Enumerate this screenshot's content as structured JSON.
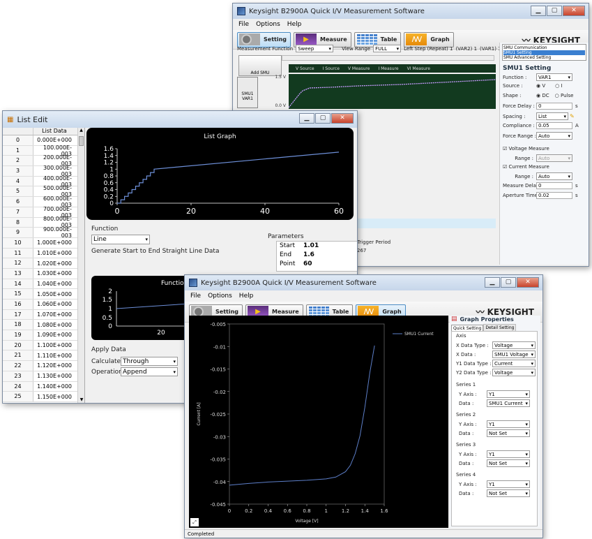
{
  "w1": {
    "title": "Keysight B2900A Quick I/V Measurement Software",
    "menu": [
      "File",
      "Options",
      "Help"
    ],
    "toolbar": {
      "setting": "Setting",
      "measure": "Measure",
      "table": "Table",
      "graph": "Graph"
    },
    "logo": "KEYSIGHT",
    "measfn_label": "Measurement Function",
    "measfn": "Sweep",
    "viewrange_label": "View Range",
    "viewrange": "FULL",
    "leftstep": "Left Step (Repeat) 1",
    "var2": "(VAR2) 1",
    "var1": "(VAR1) 1",
    "add_smu": "Add SMU",
    "smu_card": "SMU1\nVAR1",
    "legend": [
      "V Source",
      "I Source",
      "V Measure",
      "I Measure",
      "VI Measure"
    ],
    "y_top": "1.5 V",
    "y_bot": "0.0 V",
    "tree": [
      "SMU Communication",
      "SMU1 Setting",
      "SMU Advanced Setting"
    ],
    "panel_title": "SMU1 Setting",
    "function_label": "Function :",
    "function_val": "VAR1",
    "source_label": "Source :",
    "source_v": "V",
    "source_i": "I",
    "shape_label": "Shape :",
    "shape_dc": "DC",
    "shape_pulse": "Pulse",
    "forcedelay_label": "Force Delay :",
    "forcedelay": "0",
    "unit_s": "s",
    "spacing_label": "Spacing :",
    "spacing": "List",
    "compliance_label": "Compliance :",
    "compliance": "0.05",
    "unit_a": "A",
    "forcerange_label": "Force Range :",
    "forcerange": "Auto",
    "vmeas": "Voltage Measure",
    "range_label": "Range :",
    "vrange": "Auto",
    "imeas": "Current Measure",
    "irange": "Auto",
    "measdelay_label": "Measure Delay :",
    "measdelay": "0",
    "aperture_label": "Aperture Time :",
    "aperture": "0.02",
    "behind": [
      "Trigger Period",
      "267"
    ]
  },
  "w2": {
    "title": "List Edit",
    "col_header": "List Data",
    "rows": [
      [
        "0",
        "0.000E+000"
      ],
      [
        "1",
        "100.000E-003"
      ],
      [
        "2",
        "200.000E-003"
      ],
      [
        "3",
        "300.000E-003"
      ],
      [
        "4",
        "400.000E-003"
      ],
      [
        "5",
        "500.000E-003"
      ],
      [
        "6",
        "600.000E-003"
      ],
      [
        "7",
        "700.000E-003"
      ],
      [
        "8",
        "800.000E-003"
      ],
      [
        "9",
        "900.000E-003"
      ],
      [
        "10",
        "1.000E+000"
      ],
      [
        "11",
        "1.010E+000"
      ],
      [
        "12",
        "1.020E+000"
      ],
      [
        "13",
        "1.030E+000"
      ],
      [
        "14",
        "1.040E+000"
      ],
      [
        "15",
        "1.050E+000"
      ],
      [
        "16",
        "1.060E+000"
      ],
      [
        "17",
        "1.070E+000"
      ],
      [
        "18",
        "1.080E+000"
      ],
      [
        "19",
        "1.090E+000"
      ],
      [
        "20",
        "1.100E+000"
      ],
      [
        "21",
        "1.110E+000"
      ],
      [
        "22",
        "1.120E+000"
      ],
      [
        "23",
        "1.130E+000"
      ],
      [
        "24",
        "1.140E+000"
      ],
      [
        "25",
        "1.150E+000"
      ]
    ],
    "graph_title": "List Graph",
    "yticks": [
      "1.6",
      "1.4",
      "1.2",
      "1",
      "0.8",
      "0.6",
      "0.4",
      "0.2",
      "0"
    ],
    "xticks": [
      "0",
      "20",
      "40",
      "60"
    ],
    "function_label": "Function",
    "function_val": "Line",
    "function_desc": "Generate Start to End Straight Line Data",
    "params_label": "Parameters",
    "params": [
      [
        "Start",
        "1.01"
      ],
      [
        "End",
        "1.6"
      ],
      [
        "Point",
        "60"
      ]
    ],
    "fn_graph_title": "Function",
    "fn_yticks": [
      "2",
      "1.5",
      "1",
      "0.5",
      "0"
    ],
    "fn_xtick": "20",
    "apply_label": "Apply Data",
    "calc_label": "Calculate",
    "calc_val": "Through",
    "op_label": "Operation",
    "op_val": "Append"
  },
  "w3": {
    "title": "Keysight B2900A Quick I/V Measurement Software",
    "menu": [
      "File",
      "Options",
      "Help"
    ],
    "toolbar": {
      "setting": "Setting",
      "measure": "Measure",
      "table": "Table",
      "graph": "Graph"
    },
    "logo": "KEYSIGHT",
    "status": "Completed",
    "props_title": "Graph Properties",
    "tabs": [
      "Quick Setting",
      "Detail Setting"
    ],
    "axis_label": "Axis",
    "axis": [
      [
        "X Data Type :",
        "Voltage"
      ],
      [
        "X Data :",
        "SMU1 Voltage"
      ],
      [
        "Y1 Data Type :",
        "Current"
      ],
      [
        "Y2 Data Type :",
        "Voltage"
      ]
    ],
    "series": [
      {
        "name": "Series 1",
        "yaxis": "Y1",
        "data": "SMU1 Current"
      },
      {
        "name": "Series 2",
        "yaxis": "Y1",
        "data": "Not Set"
      },
      {
        "name": "Series 3",
        "yaxis": "Y1",
        "data": "Not Set"
      },
      {
        "name": "Series 4",
        "yaxis": "Y1",
        "data": "Not Set"
      }
    ],
    "yaxis_label": "Y Axis :",
    "data_label": "Data :"
  },
  "chart_data": [
    {
      "type": "line",
      "title": "List Graph",
      "xlabel": "",
      "ylabel": "",
      "xlim": [
        0,
        60
      ],
      "ylim": [
        0,
        1.6
      ],
      "x": [
        0,
        1,
        2,
        3,
        4,
        5,
        6,
        7,
        8,
        9,
        10,
        60
      ],
      "values": [
        0,
        0.1,
        0.2,
        0.3,
        0.4,
        0.5,
        0.6,
        0.7,
        0.8,
        0.9,
        1.0,
        1.5
      ]
    },
    {
      "type": "line",
      "title": "",
      "xlabel": "Voltage [V]",
      "ylabel": "Current [A]",
      "xlim": [
        0,
        1.6
      ],
      "ylim": [
        -0.045,
        -0.005
      ],
      "xticks": [
        "0",
        "0.2",
        "0.4",
        "0.6",
        "0.8",
        "1",
        "1.2",
        "1.4",
        "1.6"
      ],
      "yticks": [
        "-0.005",
        "-0.01",
        "-0.015",
        "-0.02",
        "-0.025",
        "-0.03",
        "-0.035",
        "-0.04",
        "-0.045"
      ],
      "series": [
        {
          "name": "SMU1 Current",
          "x": [
            0,
            0.2,
            0.4,
            0.6,
            0.8,
            1.0,
            1.1,
            1.2,
            1.25,
            1.3,
            1.35,
            1.4,
            1.45,
            1.5
          ],
          "values": [
            -0.0408,
            -0.0404,
            -0.0401,
            -0.0399,
            -0.0397,
            -0.0394,
            -0.039,
            -0.0378,
            -0.0364,
            -0.0338,
            -0.0298,
            -0.0235,
            -0.016,
            -0.0098
          ]
        }
      ],
      "color": "#5d7fc9"
    }
  ]
}
